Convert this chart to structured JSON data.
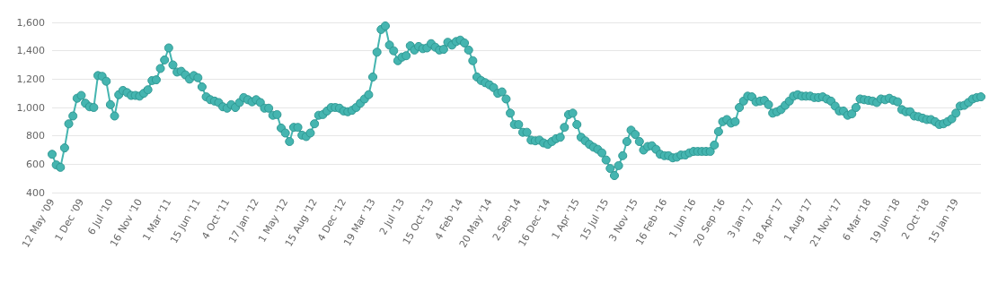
{
  "chart_data": {
    "type": "line",
    "marker": "circle",
    "grid": "y",
    "color": "#45b5b0",
    "categories": [
      "12 May '09",
      null,
      null,
      null,
      null,
      null,
      null,
      "1 Dec '09",
      null,
      null,
      null,
      null,
      null,
      null,
      "6 Jul '10",
      null,
      null,
      null,
      null,
      null,
      null,
      "16 Nov '10",
      null,
      null,
      null,
      null,
      null,
      null,
      "1 Mar '11",
      null,
      null,
      null,
      null,
      null,
      null,
      "15 Jun '11",
      null,
      null,
      null,
      null,
      null,
      null,
      "4 Oct '11",
      null,
      null,
      null,
      null,
      null,
      null,
      "17 Jan '12",
      null,
      null,
      null,
      null,
      null,
      null,
      "1 May '12",
      null,
      null,
      null,
      null,
      null,
      null,
      "15 Aug '12",
      null,
      null,
      null,
      null,
      null,
      null,
      "4 Dec '12",
      null,
      null,
      null,
      null,
      null,
      null,
      "19 Mar '13",
      null,
      null,
      null,
      null,
      null,
      null,
      "2 Jul '13",
      null,
      null,
      null,
      null,
      null,
      null,
      "15 Oct '13",
      null,
      null,
      null,
      null,
      null,
      null,
      "4 Feb '14",
      null,
      null,
      null,
      null,
      null,
      null,
      "20 May '14",
      null,
      null,
      null,
      null,
      null,
      null,
      "2 Sep '14",
      null,
      null,
      null,
      null,
      null,
      null,
      "16 Dec '14",
      null,
      null,
      null,
      null,
      null,
      null,
      "1 Apr '15",
      null,
      null,
      null,
      null,
      null,
      null,
      "15 Jul '15",
      null,
      null,
      null,
      null,
      null,
      null,
      "3 Nov '15",
      null,
      null,
      null,
      null,
      null,
      null,
      "16 Feb '16",
      null,
      null,
      null,
      null,
      null,
      null,
      "1 Jun '16",
      null,
      null,
      null,
      null,
      null,
      null,
      "20 Sep '16",
      null,
      null,
      null,
      null,
      null,
      null,
      "3 Jan '17",
      null,
      null,
      null,
      null,
      null,
      null,
      "18 Apr '17",
      null,
      null,
      null,
      null,
      null,
      null,
      "1 Aug '17",
      null,
      null,
      null,
      null,
      null,
      null,
      "21 Nov '17",
      null,
      null,
      null,
      null,
      null,
      null,
      "6 Mar '18",
      null,
      null,
      null,
      null,
      null,
      null,
      "19 Jun '18",
      null,
      null,
      null,
      null,
      null,
      null,
      "2 Oct '18",
      null,
      null,
      null,
      null,
      null,
      null,
      "15 Jan '19",
      null,
      null,
      null,
      null,
      null,
      null
    ],
    "values": [
      670,
      595,
      578,
      715,
      885,
      940,
      1065,
      1085,
      1030,
      1005,
      1000,
      1225,
      1220,
      1185,
      1020,
      940,
      1090,
      1120,
      1105,
      1085,
      1085,
      1080,
      1100,
      1125,
      1190,
      1195,
      1275,
      1335,
      1420,
      1300,
      1250,
      1255,
      1230,
      1200,
      1225,
      1210,
      1145,
      1075,
      1055,
      1045,
      1035,
      1005,
      995,
      1020,
      1000,
      1035,
      1070,
      1055,
      1040,
      1055,
      1035,
      995,
      995,
      945,
      950,
      855,
      820,
      760,
      860,
      860,
      805,
      795,
      820,
      885,
      945,
      950,
      975,
      1000,
      1000,
      995,
      975,
      970,
      980,
      1000,
      1030,
      1060,
      1090,
      1215,
      1390,
      1550,
      1575,
      1440,
      1400,
      1330,
      1355,
      1365,
      1435,
      1405,
      1430,
      1415,
      1420,
      1450,
      1425,
      1405,
      1410,
      1460,
      1440,
      1465,
      1475,
      1455,
      1405,
      1330,
      1215,
      1190,
      1175,
      1160,
      1140,
      1100,
      1110,
      1060,
      960,
      880,
      880,
      825,
      825,
      770,
      765,
      770,
      750,
      740,
      760,
      780,
      790,
      860,
      950,
      960,
      880,
      790,
      765,
      740,
      720,
      705,
      680,
      630,
      570,
      520,
      590,
      660,
      760,
      840,
      810,
      760,
      700,
      725,
      730,
      705,
      670,
      660,
      660,
      645,
      650,
      665,
      665,
      680,
      690,
      690,
      690,
      690,
      690,
      735,
      830,
      900,
      915,
      890,
      900,
      1000,
      1045,
      1080,
      1075,
      1040,
      1045,
      1050,
      1020,
      960,
      970,
      985,
      1015,
      1045,
      1080,
      1090,
      1080,
      1080,
      1080,
      1070,
      1070,
      1075,
      1060,
      1045,
      1010,
      975,
      975,
      945,
      955,
      1000,
      1060,
      1055,
      1050,
      1045,
      1035,
      1060,
      1055,
      1065,
      1050,
      1040,
      985,
      970,
      970,
      940,
      935,
      925,
      915,
      915,
      900,
      880,
      885,
      900,
      920,
      960,
      1010,
      1015,
      1035,
      1060,
      1070,
      1075
    ],
    "ylim": [
      400,
      1600
    ],
    "yticks": [
      400,
      600,
      800,
      {
        "value": 1000,
        "label": "1,000"
      },
      {
        "value": 1200,
        "label": "1,200"
      },
      {
        "value": 1400,
        "label": "1,400"
      },
      {
        "value": 1600,
        "label": "1,600"
      }
    ]
  }
}
